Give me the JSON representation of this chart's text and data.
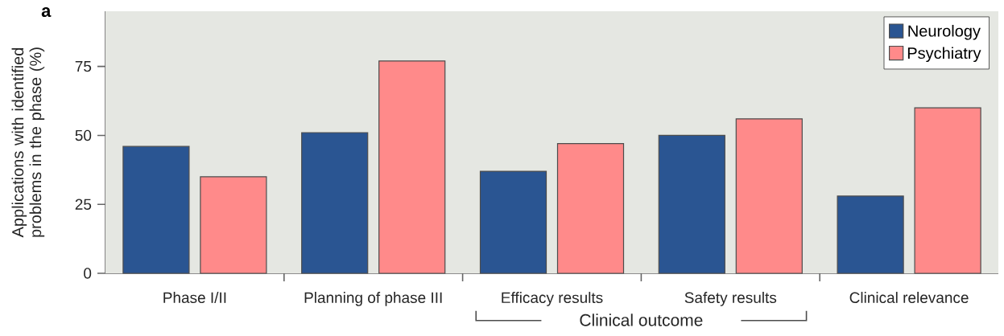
{
  "chart_data": {
    "type": "bar",
    "ylabel": "Applications with identified problems in the phase (%)",
    "categories": [
      "Phase I/II",
      "Planning of phase III",
      "Efficacy results",
      "Safety results",
      "Clinical relevance"
    ],
    "series": [
      {
        "name": "Neurology",
        "color": "#2a5592",
        "values": [
          46,
          51,
          37,
          50,
          28
        ]
      },
      {
        "name": "Psychiatry",
        "color": "#ff8a8a",
        "values": [
          35,
          77,
          47,
          56,
          60
        ]
      }
    ],
    "ylim": [
      0,
      95
    ],
    "yticks": [
      0,
      25,
      50,
      75
    ],
    "legend": "top right",
    "grid": false,
    "annotations": [
      "a",
      "Clinical outcome"
    ]
  }
}
